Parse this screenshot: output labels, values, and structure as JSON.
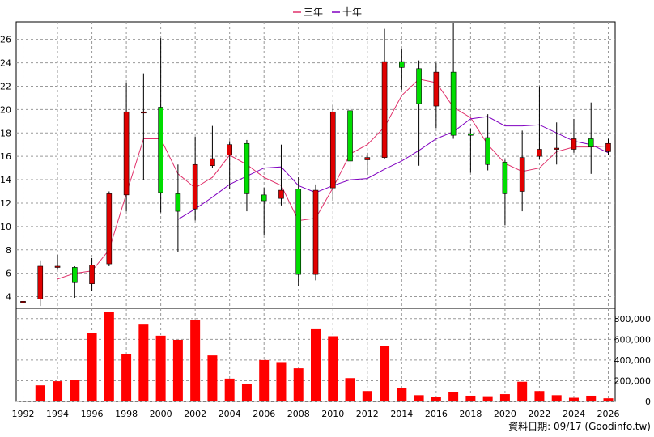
{
  "legend": [
    {
      "label": "三年",
      "color": "#e0306a"
    },
    {
      "label": "十年",
      "color": "#8000c0"
    }
  ],
  "footer": "資料日期: 09/17  (Goodinfo.tw)",
  "colors": {
    "up": "#e00000",
    "down": "#00dd00",
    "volume": "#ff0000",
    "wick": "#000000"
  },
  "chart_data": [
    {
      "type": "candlestick",
      "title": "",
      "ylim": [
        3,
        27.5
      ],
      "yticks": [
        4,
        6,
        8,
        10,
        12,
        14,
        16,
        18,
        20,
        22,
        24,
        26
      ],
      "xlim": [
        1991.6,
        2026.4
      ],
      "xticks": [
        1992,
        1994,
        1996,
        1998,
        2000,
        2002,
        2004,
        2006,
        2008,
        2010,
        2012,
        2014,
        2016,
        2018,
        2020,
        2022,
        2024,
        2026
      ],
      "grid": true,
      "legend_position": "top-center",
      "candles": [
        {
          "year": 1992,
          "open": 3.5,
          "close": 3.6,
          "high": 3.75,
          "low": 3.45
        },
        {
          "year": 1993,
          "open": 3.8,
          "close": 6.6,
          "high": 7.1,
          "low": 3.2
        },
        {
          "year": 1994,
          "open": 6.6,
          "close": 6.6,
          "high": 7.6,
          "low": 6.3
        },
        {
          "year": 1995,
          "open": 6.5,
          "close": 5.2,
          "high": 6.6,
          "low": 3.9
        },
        {
          "year": 1996,
          "open": 5.1,
          "close": 6.7,
          "high": 7.3,
          "low": 4.5
        },
        {
          "year": 1997,
          "open": 6.8,
          "close": 12.8,
          "high": 13.0,
          "low": 6.6
        },
        {
          "year": 1998,
          "open": 12.7,
          "close": 19.8,
          "high": 22.3,
          "low": 11.3
        },
        {
          "year": 1999,
          "open": 19.8,
          "close": 19.8,
          "high": 23.1,
          "low": 14.0
        },
        {
          "year": 2000,
          "open": 20.2,
          "close": 12.9,
          "high": 26.1,
          "low": 11.2
        },
        {
          "year": 2001,
          "open": 12.8,
          "close": 11.3,
          "high": 15.3,
          "low": 7.8
        },
        {
          "year": 2002,
          "open": 11.5,
          "close": 15.3,
          "high": 17.7,
          "low": 10.5
        },
        {
          "year": 2003,
          "open": 15.2,
          "close": 15.8,
          "high": 18.6,
          "low": 15.0
        },
        {
          "year": 2004,
          "open": 16.1,
          "close": 17.0,
          "high": 17.3,
          "low": 13.2
        },
        {
          "year": 2005,
          "open": 17.1,
          "close": 12.8,
          "high": 17.4,
          "low": 11.3
        },
        {
          "year": 2006,
          "open": 12.7,
          "close": 12.2,
          "high": 13.3,
          "low": 9.3
        },
        {
          "year": 2007,
          "open": 12.4,
          "close": 13.1,
          "high": 17.0,
          "low": 11.8
        },
        {
          "year": 2008,
          "open": 13.2,
          "close": 5.9,
          "high": 14.2,
          "low": 4.9
        },
        {
          "year": 2009,
          "open": 5.9,
          "close": 13.1,
          "high": 13.6,
          "low": 5.4
        },
        {
          "year": 2010,
          "open": 13.3,
          "close": 19.8,
          "high": 20.4,
          "low": 12.2
        },
        {
          "year": 2011,
          "open": 19.9,
          "close": 15.6,
          "high": 20.3,
          "low": 14.2
        },
        {
          "year": 2012,
          "open": 15.7,
          "close": 15.9,
          "high": 16.3,
          "low": 14.4
        },
        {
          "year": 2013,
          "open": 15.9,
          "close": 24.1,
          "high": 26.9,
          "low": 15.8
        },
        {
          "year": 2014,
          "open": 24.1,
          "close": 23.6,
          "high": 25.2,
          "low": 21.7
        },
        {
          "year": 2015,
          "open": 23.5,
          "close": 20.5,
          "high": 24.2,
          "low": 15.2
        },
        {
          "year": 2016,
          "open": 20.3,
          "close": 23.2,
          "high": 24.0,
          "low": 18.4
        },
        {
          "year": 2017,
          "open": 23.2,
          "close": 17.8,
          "high": 27.4,
          "low": 17.5
        },
        {
          "year": 2018,
          "open": 17.9,
          "close": 17.8,
          "high": 18.4,
          "low": 14.6
        },
        {
          "year": 2019,
          "open": 17.6,
          "close": 15.3,
          "high": 19.6,
          "low": 14.8
        },
        {
          "year": 2020,
          "open": 15.5,
          "close": 12.8,
          "high": 15.7,
          "low": 10.1
        },
        {
          "year": 2021,
          "open": 13.0,
          "close": 15.9,
          "high": 18.2,
          "low": 11.3
        },
        {
          "year": 2022,
          "open": 16.0,
          "close": 16.6,
          "high": 22.0,
          "low": 15.8
        },
        {
          "year": 2023,
          "open": 16.6,
          "close": 16.7,
          "high": 18.9,
          "low": 15.3
        },
        {
          "year": 2024,
          "open": 16.6,
          "close": 17.5,
          "high": 19.2,
          "low": 16.3
        },
        {
          "year": 2025,
          "open": 17.5,
          "close": 16.8,
          "high": 20.6,
          "low": 14.5
        },
        {
          "year": 2026,
          "open": 16.4,
          "close": 17.1,
          "high": 17.5,
          "low": 16.1
        }
      ],
      "series": [
        {
          "name": "三年",
          "color": "#e0306a",
          "x": [
            1994,
            1995,
            1996,
            1997,
            1998,
            1999,
            2000,
            2001,
            2002,
            2003,
            2004,
            2005,
            2006,
            2007,
            2008,
            2009,
            2010,
            2011,
            2012,
            2013,
            2014,
            2015,
            2016,
            2017,
            2018,
            2019,
            2020,
            2021,
            2022,
            2023,
            2024,
            2025,
            2026
          ],
          "values": [
            5.5,
            6.0,
            6.2,
            8.0,
            12.8,
            17.5,
            17.5,
            14.5,
            13.3,
            14.2,
            16.1,
            15.3,
            14.2,
            13.5,
            10.5,
            10.7,
            13.3,
            16.2,
            17.0,
            18.5,
            21.2,
            22.6,
            22.3,
            20.2,
            19.3,
            17.0,
            15.4,
            14.7,
            15.0,
            16.4,
            16.8,
            16.8,
            16.9
          ]
        },
        {
          "name": "十年",
          "color": "#8000c0",
          "x": [
            2001,
            2002,
            2003,
            2004,
            2005,
            2006,
            2007,
            2008,
            2009,
            2010,
            2011,
            2012,
            2013,
            2014,
            2015,
            2016,
            2017,
            2018,
            2019,
            2020,
            2021,
            2022,
            2023,
            2024,
            2025,
            2026
          ],
          "values": [
            10.6,
            11.5,
            12.5,
            13.6,
            14.3,
            15.0,
            15.1,
            13.5,
            12.9,
            13.5,
            14.0,
            14.1,
            14.9,
            15.6,
            16.5,
            17.5,
            18.1,
            19.2,
            19.4,
            18.6,
            18.6,
            18.7,
            18.0,
            17.3,
            17.0,
            16.3
          ]
        }
      ]
    },
    {
      "type": "bar",
      "title": "",
      "ylim": [
        0,
        900000
      ],
      "yticks": [
        0,
        200000,
        400000,
        600000,
        800000
      ],
      "ytick_labels": [
        "0",
        "200,000",
        "400,000",
        "600,000",
        "800,000"
      ],
      "categories": [
        1992,
        1993,
        1994,
        1995,
        1996,
        1997,
        1998,
        1999,
        2000,
        2001,
        2002,
        2003,
        2004,
        2005,
        2006,
        2007,
        2008,
        2009,
        2010,
        2011,
        2012,
        2013,
        2014,
        2015,
        2016,
        2017,
        2018,
        2019,
        2020,
        2021,
        2022,
        2023,
        2024,
        2025,
        2026
      ],
      "values": [
        0,
        155000,
        195000,
        205000,
        665000,
        865000,
        460000,
        750000,
        635000,
        595000,
        790000,
        445000,
        220000,
        165000,
        400000,
        380000,
        320000,
        705000,
        630000,
        225000,
        100000,
        540000,
        130000,
        60000,
        40000,
        90000,
        55000,
        50000,
        70000,
        190000,
        100000,
        60000,
        35000,
        55000,
        30000
      ],
      "grid": true
    }
  ]
}
